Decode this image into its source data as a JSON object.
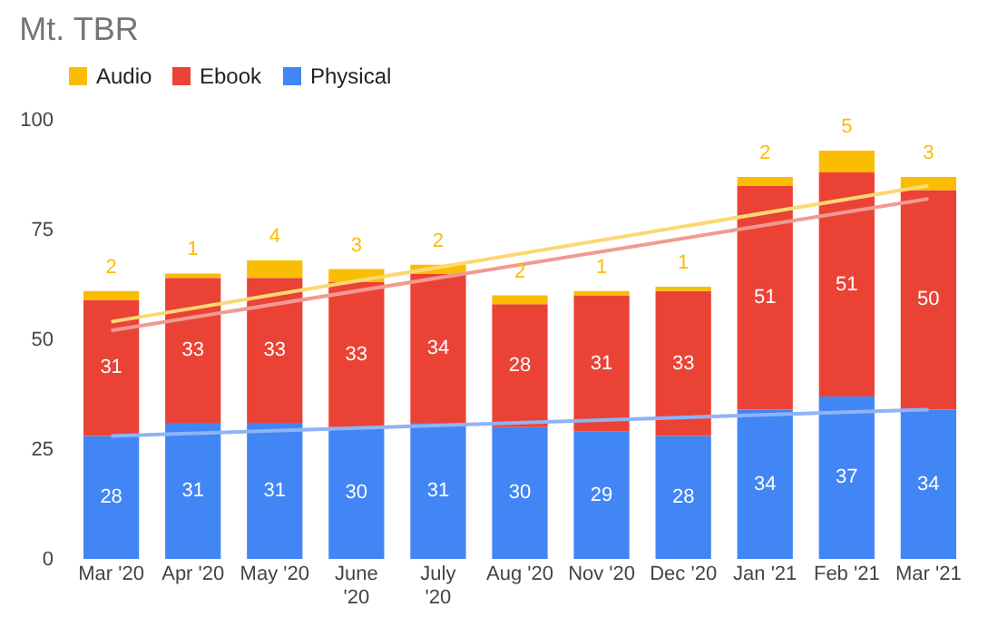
{
  "chart_data": {
    "type": "bar",
    "title": "Mt. TBR",
    "stacked": true,
    "legend": "top",
    "grid": false,
    "categories": [
      "Mar '20",
      "Apr '20",
      "May '20",
      "June '20",
      "July '20",
      "Aug '20",
      "Nov '20",
      "Dec '20",
      "Jan '21",
      "Feb '21",
      "Mar '21"
    ],
    "ylim": [
      0,
      100
    ],
    "yticks": [
      0,
      25,
      50,
      75,
      100
    ],
    "series": [
      {
        "name": "Physical",
        "color": "#4285f4",
        "values": [
          28,
          31,
          31,
          30,
          31,
          30,
          29,
          28,
          34,
          37,
          34
        ],
        "value_labels": [
          "28",
          "31",
          "31",
          "30",
          "31",
          "30",
          "29",
          "28",
          "34",
          "37",
          "34"
        ]
      },
      {
        "name": "Ebook",
        "color": "#ea4335",
        "values": [
          31,
          33,
          33,
          33,
          34,
          28,
          31,
          33,
          51,
          51,
          50
        ],
        "value_labels": [
          "31",
          "33",
          "33",
          "33",
          "34",
          "28",
          "31",
          "33",
          "51",
          "51",
          "50"
        ]
      },
      {
        "name": "Audio",
        "color": "#fbbc04",
        "values": [
          2,
          1,
          4,
          3,
          2,
          2,
          1,
          1,
          2,
          5,
          3
        ],
        "value_labels": [
          "2",
          "1",
          "4",
          "3",
          "2",
          "2",
          "1",
          "1",
          "2",
          "5",
          "3"
        ]
      },
      {
        "type": "line",
        "color": "#8fb3f7",
        "x": [
          "Mar '20",
          "Mar '21"
        ],
        "values": [
          28,
          34
        ]
      },
      {
        "type": "line",
        "color": "#f19a92",
        "x": [
          "Mar '20",
          "Mar '21"
        ],
        "values": [
          52,
          82
        ]
      },
      {
        "type": "line",
        "color": "#fcd872",
        "x": [
          "Mar '20",
          "Mar '21"
        ],
        "values": [
          54,
          85
        ]
      }
    ]
  }
}
